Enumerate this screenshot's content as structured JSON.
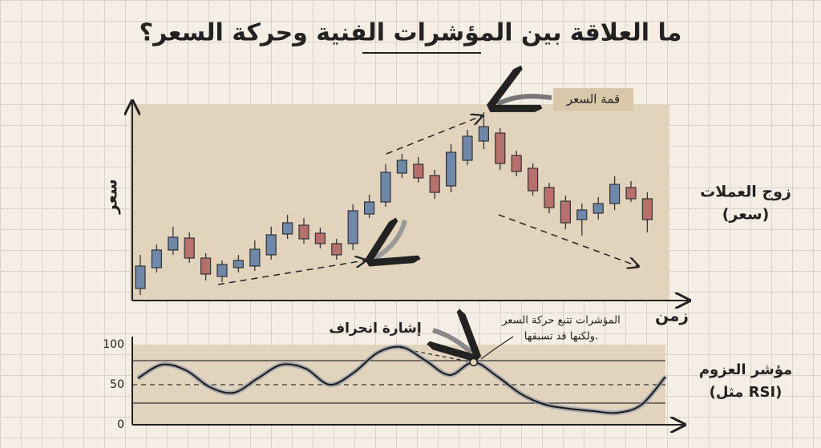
{
  "chart_data": [
    {
      "type": "candlestick",
      "title": "ما العلاقة بين المؤشرات الفنية وحركة السعر؟",
      "y_label": "سعر",
      "x_label": "زمن",
      "side_label": [
        "زوج العملات",
        "(سعر)"
      ],
      "annotation": "قمة السعر",
      "up_color": "#6f87a8",
      "down_color": "#b8706c",
      "ylim": [
        0,
        245
      ],
      "open": [
        15,
        41,
        63,
        78,
        53,
        30,
        41,
        43,
        57,
        83,
        94,
        84,
        71,
        71,
        108,
        123,
        159,
        170,
        156,
        143,
        175,
        199,
        209,
        181,
        165,
        141,
        124,
        101,
        109,
        121,
        141,
        127
      ],
      "high": [
        57,
        70,
        92,
        85,
        59,
        50,
        57,
        75,
        92,
        107,
        103,
        91,
        77,
        120,
        132,
        170,
        183,
        179,
        163,
        195,
        213,
        235,
        215,
        187,
        171,
        147,
        131,
        121,
        129,
        155,
        149,
        135
      ],
      "low": [
        7,
        35,
        57,
        47,
        25,
        23,
        35,
        37,
        51,
        77,
        71,
        65,
        51,
        63,
        103,
        117,
        153,
        147,
        127,
        135,
        169,
        189,
        163,
        155,
        131,
        109,
        89,
        81,
        101,
        113,
        123,
        85
      ],
      "close": [
        43,
        63,
        79,
        53,
        33,
        45,
        50,
        64,
        82,
        97,
        77,
        71,
        57,
        112,
        123,
        160,
        175,
        153,
        135,
        185,
        205,
        217,
        171,
        161,
        137,
        116,
        97,
        113,
        121,
        145,
        127,
        101
      ]
    },
    {
      "type": "line",
      "side_label": [
        "مؤشر العزوم",
        "(مثل RSI)"
      ],
      "annotations": [
        "إشارة انحراف",
        "المؤشرات تتبع حركة السعر",
        "ولكنها قد تسبقها."
      ],
      "color": "#1a1a1a",
      "ylim": [
        0,
        100
      ],
      "yticks": [
        0,
        50,
        100
      ],
      "reference_lines": [
        80,
        50,
        27
      ],
      "values": [
        58,
        75,
        68,
        47,
        40,
        58,
        75,
        70,
        50,
        65,
        90,
        97,
        80,
        62,
        78,
        60,
        38,
        25,
        20,
        17,
        15,
        25,
        60
      ]
    }
  ]
}
